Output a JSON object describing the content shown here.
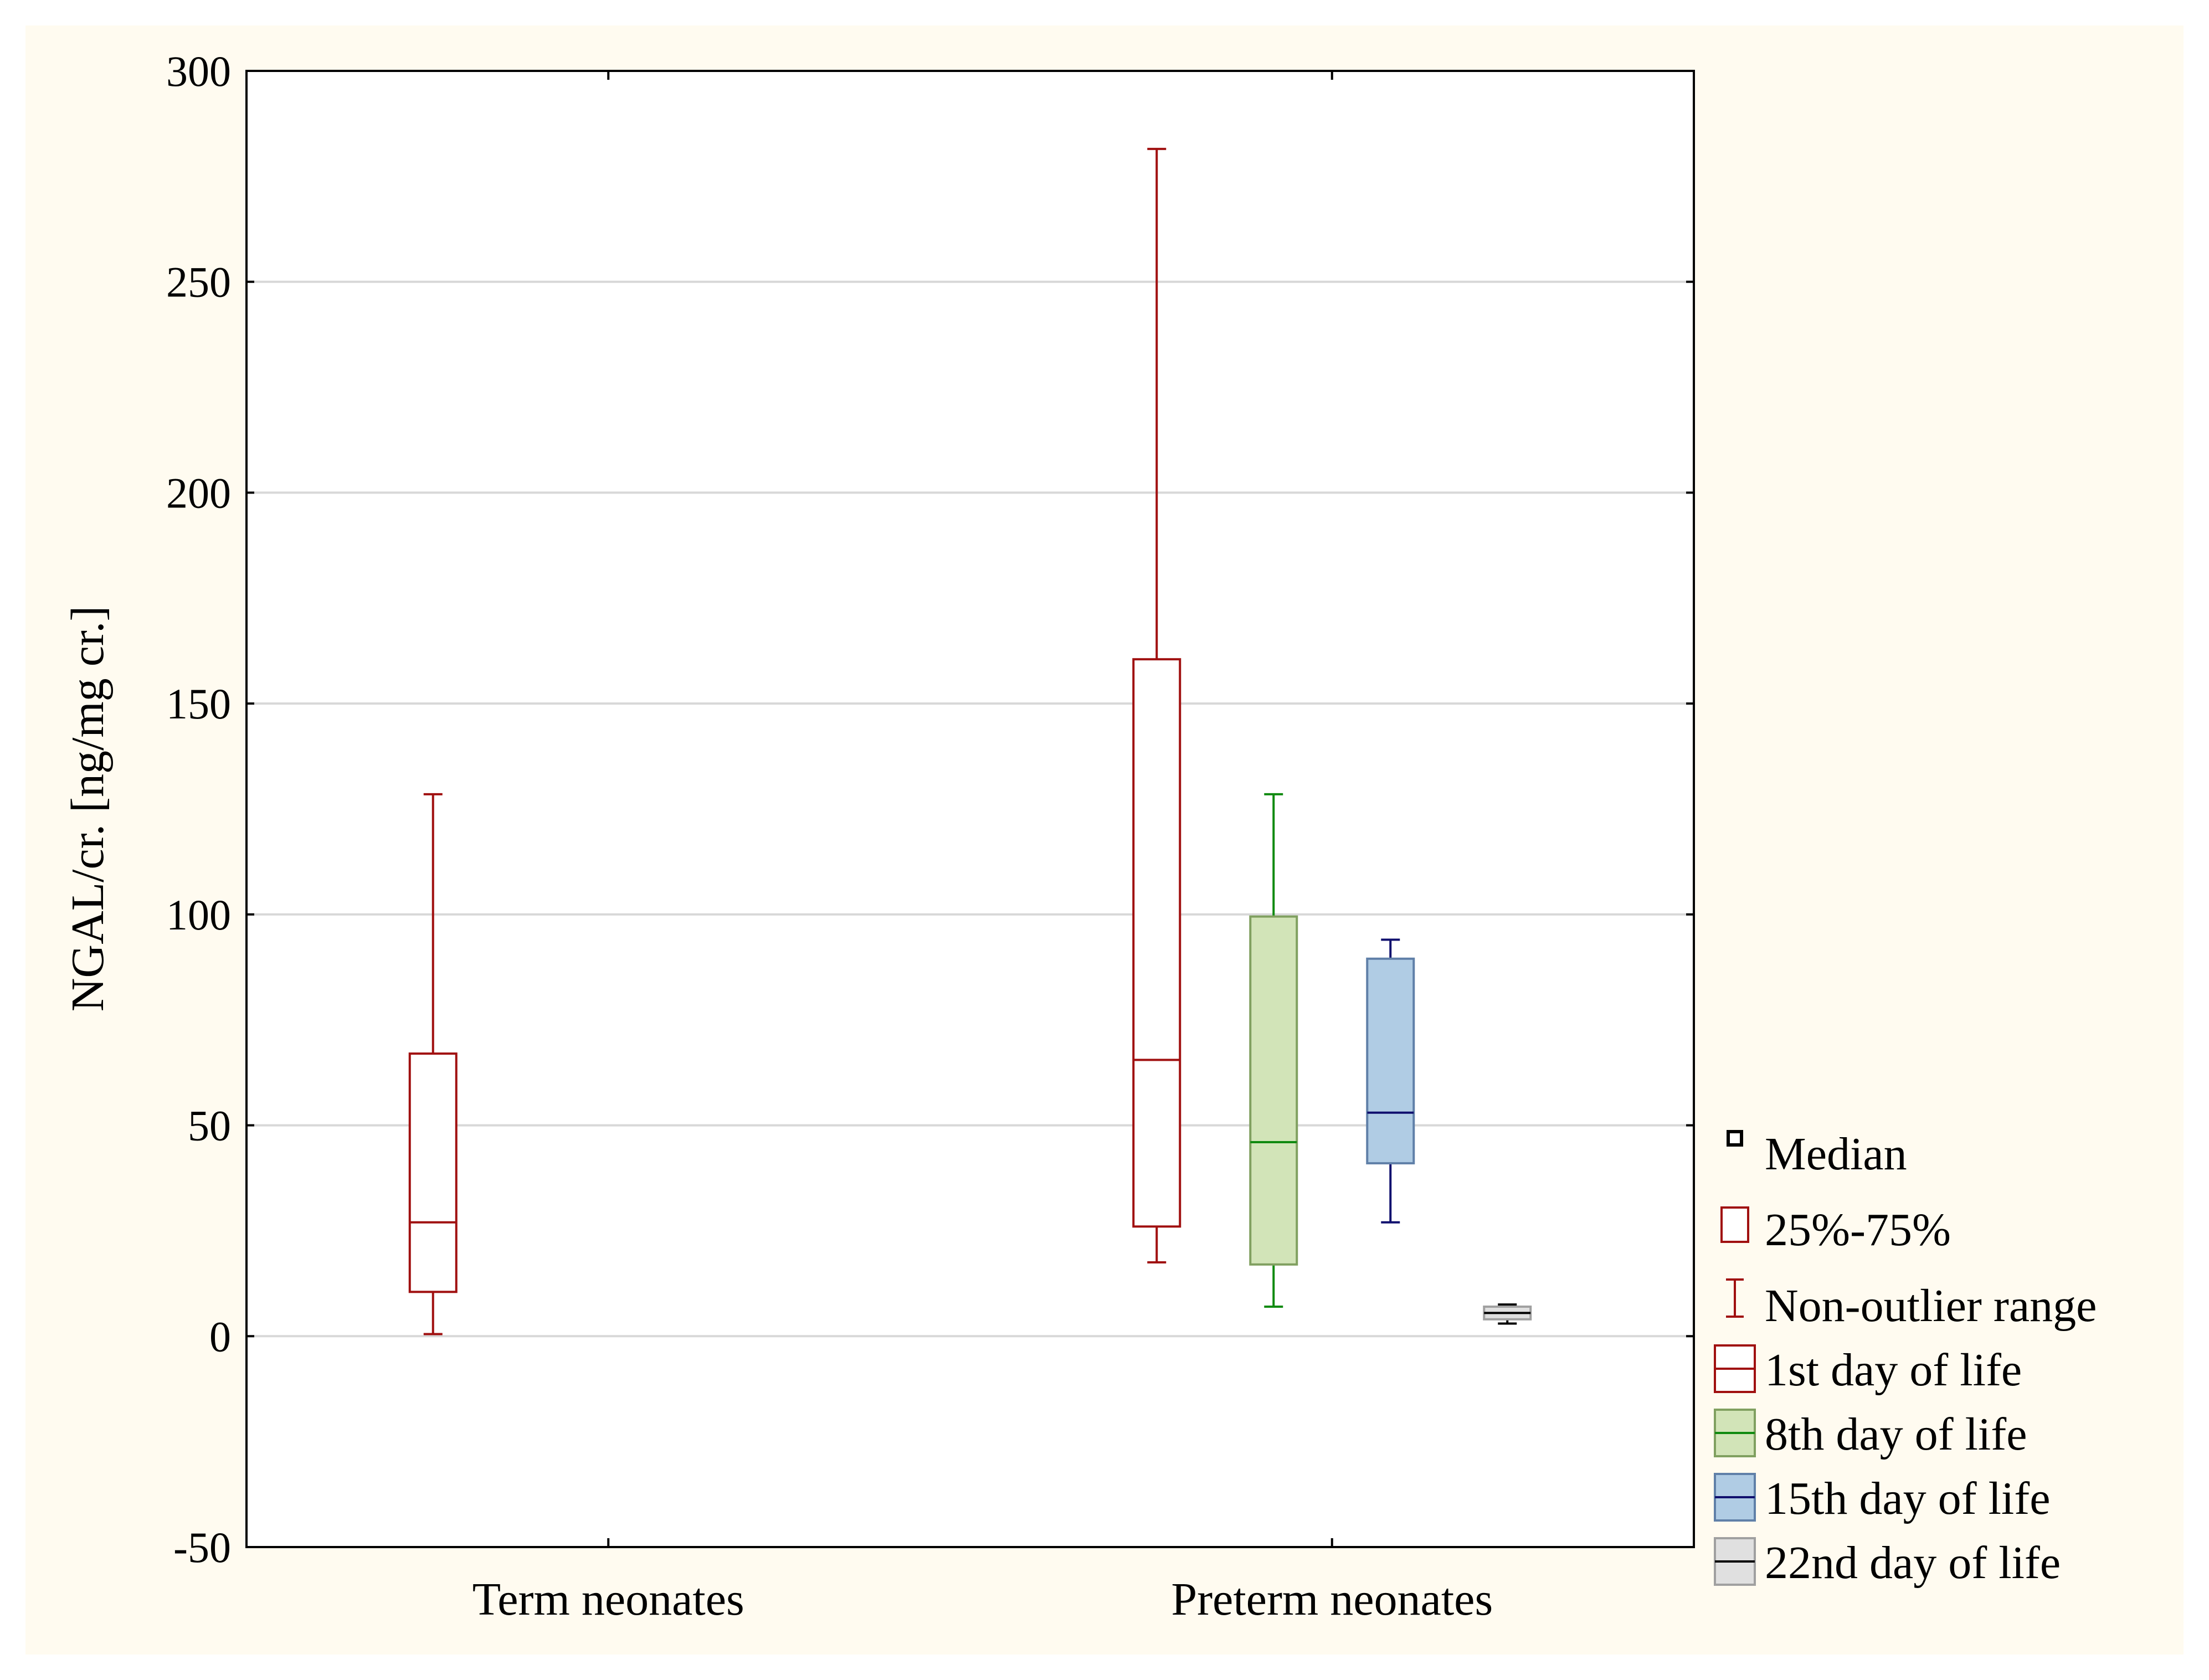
{
  "chart_data": {
    "type": "boxplot",
    "title": "",
    "xlabel": "",
    "ylabel": "NGAL/cr. [ng/mg cr.]",
    "ylim": [
      -50,
      300
    ],
    "yticks": [
      -50,
      0,
      50,
      100,
      150,
      200,
      250,
      300
    ],
    "grid": true,
    "categories": [
      "Term neonates",
      "Preterm neonates"
    ],
    "series": [
      {
        "name": "1st day of life",
        "color": "#a01010",
        "fill": "#ffffff",
        "boxes": [
          {
            "category": "Term neonates",
            "min": 0.5,
            "q1": 10.5,
            "median": 27,
            "q3": 67,
            "max": 128.5
          },
          {
            "category": "Preterm neonates",
            "min": 17.5,
            "q1": 26,
            "median": 65.5,
            "q3": 160.5,
            "max": 281.5
          }
        ]
      },
      {
        "name": "8th day of life",
        "color": "#108a10",
        "fill": "#d2e4b8",
        "edge": "#80a060",
        "boxes": [
          {
            "category": "Preterm neonates",
            "min": 7,
            "q1": 17,
            "median": 46,
            "q3": 99.5,
            "max": 128.5
          }
        ]
      },
      {
        "name": "15th day of life",
        "color": "#10106e",
        "fill": "#b0cce4",
        "edge": "#6080a8",
        "boxes": [
          {
            "category": "Preterm neonates",
            "min": 27,
            "q1": 41,
            "median": 53,
            "q3": 89.5,
            "max": 94
          }
        ]
      },
      {
        "name": "22nd day of life",
        "color": "#000000",
        "fill": "#e0e0e0",
        "edge": "#a0a0a0",
        "boxes": [
          {
            "category": "Preterm neonates",
            "min": 3,
            "q1": 4,
            "median": 5.5,
            "q3": 7,
            "max": 7.5
          }
        ]
      }
    ],
    "legend": {
      "position": "bottom-right",
      "items": [
        "Median",
        "25%-75%",
        "Non-outlier range",
        "1st day of life",
        "8th day of life",
        "15th day of life",
        "22nd day of life"
      ]
    }
  }
}
